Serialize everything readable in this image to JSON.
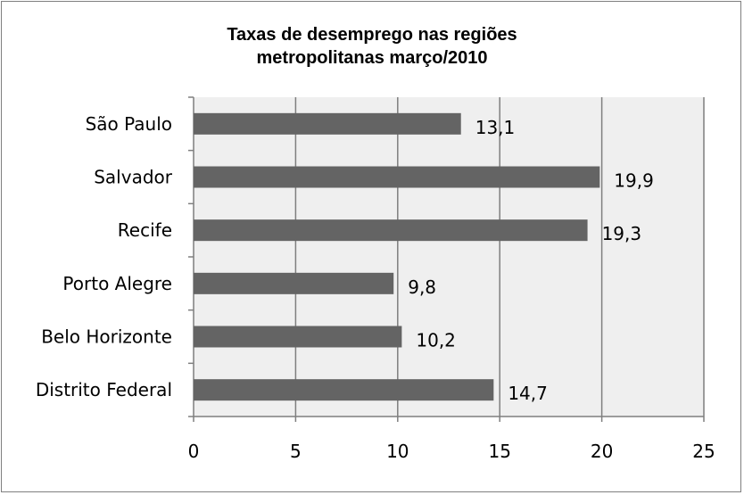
{
  "chart_data": {
    "type": "bar",
    "orientation": "horizontal",
    "title": "Taxas de desemprego nas regiões metropolitanas março/2010",
    "title_lines": [
      "Taxas de desemprego nas regiões",
      "metropolitanas março/2010"
    ],
    "categories": [
      "São Paulo",
      "Salvador",
      "Recife",
      "Porto Alegre",
      "Belo Horizonte",
      "Distrito Federal"
    ],
    "values": [
      13.1,
      19.9,
      19.3,
      9.8,
      10.2,
      14.7
    ],
    "value_labels": [
      "13,1",
      "19,9",
      "19,3",
      "9,8",
      "10,2",
      "14,7"
    ],
    "xlim": [
      0,
      25
    ],
    "xticks": [
      0,
      5,
      10,
      15,
      20,
      25
    ],
    "xtick_labels": [
      "0",
      "5",
      "10",
      "15",
      "20",
      "25"
    ],
    "xlabel": "",
    "ylabel": "",
    "grid": "vertical",
    "legend": "none",
    "colors": {
      "bar": "#646464",
      "plot_background": "#efefef",
      "gridline": "#7f7f7f",
      "axis": "#7f7f7f"
    }
  }
}
